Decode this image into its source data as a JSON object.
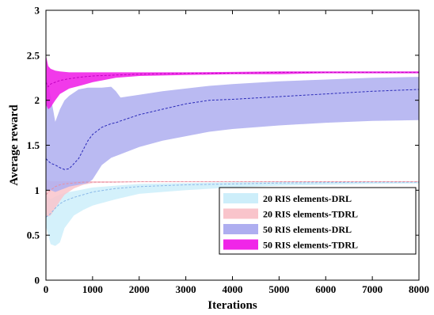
{
  "chart_data": {
    "type": "area",
    "title": "",
    "xlabel": "Iterations",
    "ylabel": "Average reward",
    "xlim": [
      0,
      8000
    ],
    "ylim": [
      0,
      3
    ],
    "xticks": [
      0,
      1000,
      2000,
      3000,
      4000,
      5000,
      6000,
      7000,
      8000
    ],
    "yticks": [
      0,
      0.5,
      1,
      1.5,
      2,
      2.5,
      3
    ],
    "xtick_labels": [
      "0",
      "1000",
      "2000",
      "3000",
      "4000",
      "5000",
      "6000",
      "7000",
      "8000"
    ],
    "ytick_labels": [
      "0",
      "0.5",
      "1",
      "1.5",
      "2",
      "2.5",
      "3"
    ],
    "grid": false,
    "legend_position": "bottom-right",
    "series": [
      {
        "name": "20 RIS elements-DRL",
        "color": "#cdeefa",
        "line_color": "#8ab8e8",
        "x": [
          0,
          100,
          200,
          300,
          400,
          600,
          800,
          1000,
          1500,
          2000,
          3000,
          4000,
          5000,
          6000,
          7000,
          8000
        ],
        "mean": [
          0.7,
          0.74,
          0.8,
          0.85,
          0.88,
          0.92,
          0.95,
          0.98,
          1.02,
          1.04,
          1.06,
          1.07,
          1.08,
          1.085,
          1.09,
          1.09
        ],
        "upper": [
          0.95,
          0.9,
          0.93,
          0.95,
          0.97,
          0.99,
          1.01,
          1.03,
          1.05,
          1.07,
          1.08,
          1.09,
          1.095,
          1.1,
          1.1,
          1.1
        ],
        "lower": [
          0.6,
          0.4,
          0.38,
          0.42,
          0.58,
          0.72,
          0.78,
          0.83,
          0.9,
          0.96,
          1.0,
          1.03,
          1.05,
          1.06,
          1.07,
          1.075
        ]
      },
      {
        "name": "20 RIS elements-TDRL",
        "color": "#f9c4cb",
        "line_color": "#e88fa0",
        "x": [
          0,
          100,
          200,
          300,
          400,
          600,
          800,
          1000,
          1500,
          2000,
          3000,
          4000,
          5000,
          6000,
          7000,
          8000
        ],
        "mean": [
          0.95,
          1.0,
          1.04,
          1.06,
          1.07,
          1.08,
          1.09,
          1.09,
          1.09,
          1.095,
          1.095,
          1.095,
          1.095,
          1.095,
          1.095,
          1.095
        ],
        "upper": [
          1.12,
          1.1,
          1.1,
          1.1,
          1.1,
          1.1,
          1.1,
          1.1,
          1.1,
          1.1,
          1.1,
          1.1,
          1.1,
          1.1,
          1.1,
          1.1
        ],
        "lower": [
          0.7,
          0.72,
          0.8,
          0.88,
          0.95,
          1.02,
          1.06,
          1.08,
          1.085,
          1.09,
          1.09,
          1.09,
          1.09,
          1.09,
          1.09,
          1.09
        ]
      },
      {
        "name": "50 RIS elements-DRL",
        "color": "#aeaef0",
        "line_color": "#2a2ab8",
        "x": [
          0,
          100,
          200,
          300,
          400,
          500,
          700,
          900,
          1000,
          1200,
          1400,
          1500,
          1600,
          2000,
          2500,
          3000,
          3500,
          4000,
          5000,
          6000,
          7000,
          8000
        ],
        "mean": [
          1.35,
          1.3,
          1.28,
          1.25,
          1.23,
          1.24,
          1.35,
          1.55,
          1.62,
          1.7,
          1.74,
          1.75,
          1.77,
          1.84,
          1.9,
          1.96,
          2.0,
          2.01,
          2.04,
          2.07,
          2.1,
          2.12
        ],
        "upper": [
          2.3,
          2.05,
          1.76,
          1.9,
          2.0,
          2.05,
          2.12,
          2.14,
          2.14,
          2.14,
          2.15,
          2.1,
          2.03,
          2.06,
          2.1,
          2.13,
          2.16,
          2.18,
          2.21,
          2.23,
          2.25,
          2.26
        ],
        "lower": [
          1.0,
          1.0,
          0.98,
          1.0,
          1.02,
          1.04,
          1.06,
          1.08,
          1.12,
          1.28,
          1.36,
          1.38,
          1.4,
          1.48,
          1.55,
          1.6,
          1.65,
          1.68,
          1.72,
          1.75,
          1.77,
          1.78
        ]
      },
      {
        "name": "50 RIS elements-TDRL",
        "color": "#f025e8",
        "line_color": "#c000c0",
        "x": [
          0,
          50,
          100,
          200,
          300,
          500,
          800,
          1000,
          1500,
          2000,
          3000,
          4000,
          5000,
          6000,
          7000,
          8000
        ],
        "mean": [
          2.2,
          2.15,
          2.18,
          2.2,
          2.22,
          2.24,
          2.26,
          2.27,
          2.28,
          2.29,
          2.3,
          2.3,
          2.31,
          2.31,
          2.31,
          2.31
        ],
        "upper": [
          2.5,
          2.38,
          2.35,
          2.33,
          2.32,
          2.31,
          2.31,
          2.31,
          2.31,
          2.31,
          2.31,
          2.315,
          2.32,
          2.32,
          2.32,
          2.32
        ],
        "lower": [
          1.95,
          1.9,
          1.92,
          2.0,
          2.07,
          2.13,
          2.17,
          2.2,
          2.25,
          2.27,
          2.28,
          2.29,
          2.29,
          2.3,
          2.3,
          2.3
        ]
      }
    ]
  }
}
